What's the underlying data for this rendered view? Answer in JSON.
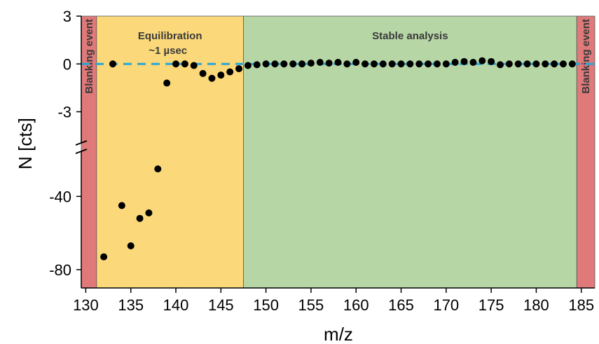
{
  "chart_data": {
    "type": "scatter",
    "xlabel": "m/z",
    "ylabel": "N [cts]",
    "x_ticks": [
      "130",
      "135",
      "140",
      "145",
      "150",
      "155",
      "160",
      "165",
      "170",
      "175",
      "180",
      "185"
    ],
    "y_ticks_upper": [
      "3",
      "0",
      "-3"
    ],
    "y_ticks_lower": [
      "-40",
      "-80"
    ],
    "xlim": [
      129.5,
      186.5
    ],
    "ylim_upper": [
      -5,
      3
    ],
    "ylim_lower": [
      -90,
      -15
    ],
    "axis_break": true,
    "reference_line": {
      "y": 0,
      "style": "dashed",
      "color": "#2aa6d6"
    },
    "regions": [
      {
        "label": "Blanking event",
        "x_start": 129.5,
        "x_end": 131.2,
        "color": "#e07a7a",
        "vertical_label": true
      },
      {
        "label": "Equilibration",
        "label_line2": "~1 µsec",
        "x_start": 131.2,
        "x_end": 147.5,
        "color": "#fbd97a",
        "vertical_label": false
      },
      {
        "label": "Stable analysis",
        "x_start": 147.5,
        "x_end": 184.5,
        "color": "#b7d6a6",
        "vertical_label": false
      },
      {
        "label": "Blanking event",
        "x_start": 184.5,
        "x_end": 186.5,
        "color": "#e07a7a",
        "vertical_label": true
      }
    ],
    "points_lower": [
      {
        "x": 132,
        "y": -73
      },
      {
        "x": 134,
        "y": -45
      },
      {
        "x": 135,
        "y": -67
      },
      {
        "x": 136,
        "y": -52
      },
      {
        "x": 137,
        "y": -49
      },
      {
        "x": 138,
        "y": -25
      }
    ],
    "points_upper": [
      {
        "x": 133,
        "y": 0
      },
      {
        "x": 139,
        "y": -1.2
      },
      {
        "x": 140,
        "y": 0
      },
      {
        "x": 141,
        "y": 0
      },
      {
        "x": 142,
        "y": -0.1
      },
      {
        "x": 143,
        "y": -0.6
      },
      {
        "x": 144,
        "y": -0.9
      },
      {
        "x": 145,
        "y": -0.7
      },
      {
        "x": 146,
        "y": -0.5
      },
      {
        "x": 147,
        "y": -0.3
      },
      {
        "x": 148,
        "y": -0.1
      },
      {
        "x": 149,
        "y": -0.05
      },
      {
        "x": 150,
        "y": 0
      },
      {
        "x": 151,
        "y": 0
      },
      {
        "x": 152,
        "y": 0
      },
      {
        "x": 153,
        "y": 0
      },
      {
        "x": 154,
        "y": 0
      },
      {
        "x": 155,
        "y": 0.05
      },
      {
        "x": 156,
        "y": 0.1
      },
      {
        "x": 157,
        "y": 0.05
      },
      {
        "x": 158,
        "y": 0.1
      },
      {
        "x": 159,
        "y": 0
      },
      {
        "x": 160,
        "y": 0.1
      },
      {
        "x": 161,
        "y": 0
      },
      {
        "x": 162,
        "y": 0
      },
      {
        "x": 163,
        "y": 0
      },
      {
        "x": 164,
        "y": 0
      },
      {
        "x": 165,
        "y": 0
      },
      {
        "x": 166,
        "y": 0
      },
      {
        "x": 167,
        "y": 0
      },
      {
        "x": 168,
        "y": 0
      },
      {
        "x": 169,
        "y": 0
      },
      {
        "x": 170,
        "y": 0
      },
      {
        "x": 171,
        "y": 0.1
      },
      {
        "x": 172,
        "y": 0.15
      },
      {
        "x": 173,
        "y": 0.1
      },
      {
        "x": 174,
        "y": 0.2
      },
      {
        "x": 175,
        "y": 0.15
      },
      {
        "x": 176,
        "y": -0.05
      },
      {
        "x": 177,
        "y": 0
      },
      {
        "x": 178,
        "y": 0
      },
      {
        "x": 179,
        "y": 0
      },
      {
        "x": 180,
        "y": 0
      },
      {
        "x": 181,
        "y": 0
      },
      {
        "x": 182,
        "y": 0
      },
      {
        "x": 183,
        "y": 0
      },
      {
        "x": 184,
        "y": 0
      }
    ],
    "colors": {
      "points": "#000000",
      "axis": "#000000"
    }
  }
}
